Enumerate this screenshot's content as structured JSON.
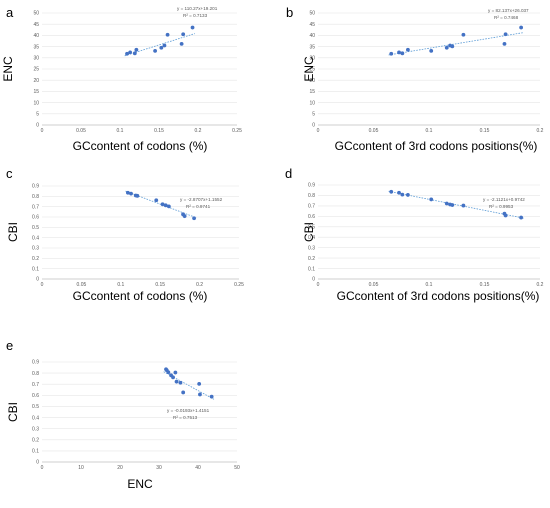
{
  "chart_data": [
    {
      "panel": "a",
      "type": "scatter",
      "xlabel": "GCcontent of codons (%)",
      "ylabel": "ENC",
      "xlim": [
        0,
        0.25
      ],
      "ylim": [
        0,
        50
      ],
      "xticks": [
        "0",
        "0.05",
        "0.1",
        "0.15",
        "0.2",
        "0.25"
      ],
      "yticks": [
        "0",
        "5",
        "10",
        "15",
        "20",
        "25",
        "30",
        "35",
        "40",
        "45",
        "50"
      ],
      "points": [
        [
          0.109,
          31.8
        ],
        [
          0.113,
          32.4
        ],
        [
          0.119,
          32.0
        ],
        [
          0.121,
          33.6
        ],
        [
          0.145,
          33.1
        ],
        [
          0.153,
          34.5
        ],
        [
          0.157,
          35.5
        ],
        [
          0.161,
          40.3
        ],
        [
          0.179,
          36.2
        ],
        [
          0.181,
          40.5
        ],
        [
          0.193,
          43.5
        ]
      ],
      "trendline": {
        "slope": 110.27,
        "intercept": 19.201
      },
      "equation": "y = 110.27x+19.201",
      "r2": "R² = 0.7133"
    },
    {
      "panel": "b",
      "type": "scatter",
      "xlabel": "GCcontent of 3rd codons positions(%)",
      "ylabel": "ENC",
      "xlim": [
        0,
        0.2
      ],
      "ylim": [
        0,
        50
      ],
      "xticks": [
        "0",
        "0.05",
        "0.1",
        "0.15",
        "0.2"
      ],
      "yticks": [
        "0",
        "5",
        "10",
        "15",
        "20",
        "25",
        "30",
        "35",
        "40",
        "45",
        "50"
      ],
      "points": [
        [
          0.066,
          31.8
        ],
        [
          0.073,
          32.4
        ],
        [
          0.076,
          32.0
        ],
        [
          0.081,
          33.6
        ],
        [
          0.102,
          33.1
        ],
        [
          0.116,
          34.5
        ],
        [
          0.119,
          35.5
        ],
        [
          0.121,
          35.1
        ],
        [
          0.131,
          40.3
        ],
        [
          0.168,
          36.2
        ],
        [
          0.169,
          40.5
        ],
        [
          0.183,
          43.5
        ]
      ],
      "trendline": {
        "slope": 82.137,
        "intercept": 26.037
      },
      "equation": "y = 82.137x+26.037",
      "r2": "R² = 0.7468"
    },
    {
      "panel": "c",
      "type": "scatter",
      "xlabel": "GCcontent of codons (%)",
      "ylabel": "CBI",
      "xlim": [
        0,
        0.25
      ],
      "ylim": [
        0,
        0.9
      ],
      "xticks": [
        "0",
        "0.05",
        "0.1",
        "0.15",
        "0.2",
        "0.25"
      ],
      "yticks": [
        "0",
        "0.1",
        "0.2",
        "0.3",
        "0.4",
        "0.5",
        "0.6",
        "0.7",
        "0.8",
        "0.9"
      ],
      "points": [
        [
          0.109,
          0.835
        ],
        [
          0.113,
          0.826
        ],
        [
          0.119,
          0.808
        ],
        [
          0.121,
          0.805
        ],
        [
          0.145,
          0.762
        ],
        [
          0.153,
          0.723
        ],
        [
          0.157,
          0.713
        ],
        [
          0.161,
          0.703
        ],
        [
          0.179,
          0.626
        ],
        [
          0.181,
          0.608
        ],
        [
          0.193,
          0.588
        ]
      ],
      "trendline": {
        "slope": -2.8707,
        "intercept": 1.1552
      },
      "equation": "y = -2.8707x+1.1552",
      "r2": "R² = 0.9741"
    },
    {
      "panel": "d",
      "type": "scatter",
      "xlabel": "GCcontent of 3rd codons positions(%)",
      "ylabel": "CBI",
      "xlim": [
        0,
        0.2
      ],
      "ylim": [
        0,
        0.9
      ],
      "xticks": [
        "0",
        "0.05",
        "0.1",
        "0.15",
        "0.2"
      ],
      "yticks": [
        "0",
        "0.1",
        "0.2",
        "0.3",
        "0.4",
        "0.5",
        "0.6",
        "0.7",
        "0.8",
        "0.9"
      ],
      "points": [
        [
          0.066,
          0.835
        ],
        [
          0.073,
          0.826
        ],
        [
          0.076,
          0.808
        ],
        [
          0.081,
          0.805
        ],
        [
          0.102,
          0.762
        ],
        [
          0.116,
          0.723
        ],
        [
          0.119,
          0.713
        ],
        [
          0.121,
          0.708
        ],
        [
          0.131,
          0.703
        ],
        [
          0.168,
          0.626
        ],
        [
          0.169,
          0.608
        ],
        [
          0.183,
          0.588
        ]
      ],
      "trendline": {
        "slope": -2.1121,
        "intercept": 0.9742
      },
      "equation": "y = -2.1121x+0.9742",
      "r2": "R² = 0.9953"
    },
    {
      "panel": "e",
      "type": "scatter",
      "xlabel": "ENC",
      "ylabel": "CBI",
      "xlim": [
        0,
        50
      ],
      "ylim": [
        0,
        0.9
      ],
      "xticks": [
        "0",
        "10",
        "20",
        "30",
        "40",
        "50"
      ],
      "yticks": [
        "0",
        "0.1",
        "0.2",
        "0.3",
        "0.4",
        "0.5",
        "0.6",
        "0.7",
        "0.8",
        "0.9"
      ],
      "points": [
        [
          31.8,
          0.835
        ],
        [
          32.0,
          0.826
        ],
        [
          32.4,
          0.808
        ],
        [
          33.1,
          0.78
        ],
        [
          33.6,
          0.762
        ],
        [
          34.2,
          0.805
        ],
        [
          34.5,
          0.723
        ],
        [
          35.5,
          0.713
        ],
        [
          36.2,
          0.626
        ],
        [
          40.3,
          0.703
        ],
        [
          40.5,
          0.608
        ],
        [
          43.5,
          0.588
        ]
      ],
      "trendline": {
        "slope": -0.0193,
        "intercept": 1.4151
      },
      "equation": "y = -0.0193x+1.4151",
      "r2": "R² = 0.7513"
    }
  ]
}
